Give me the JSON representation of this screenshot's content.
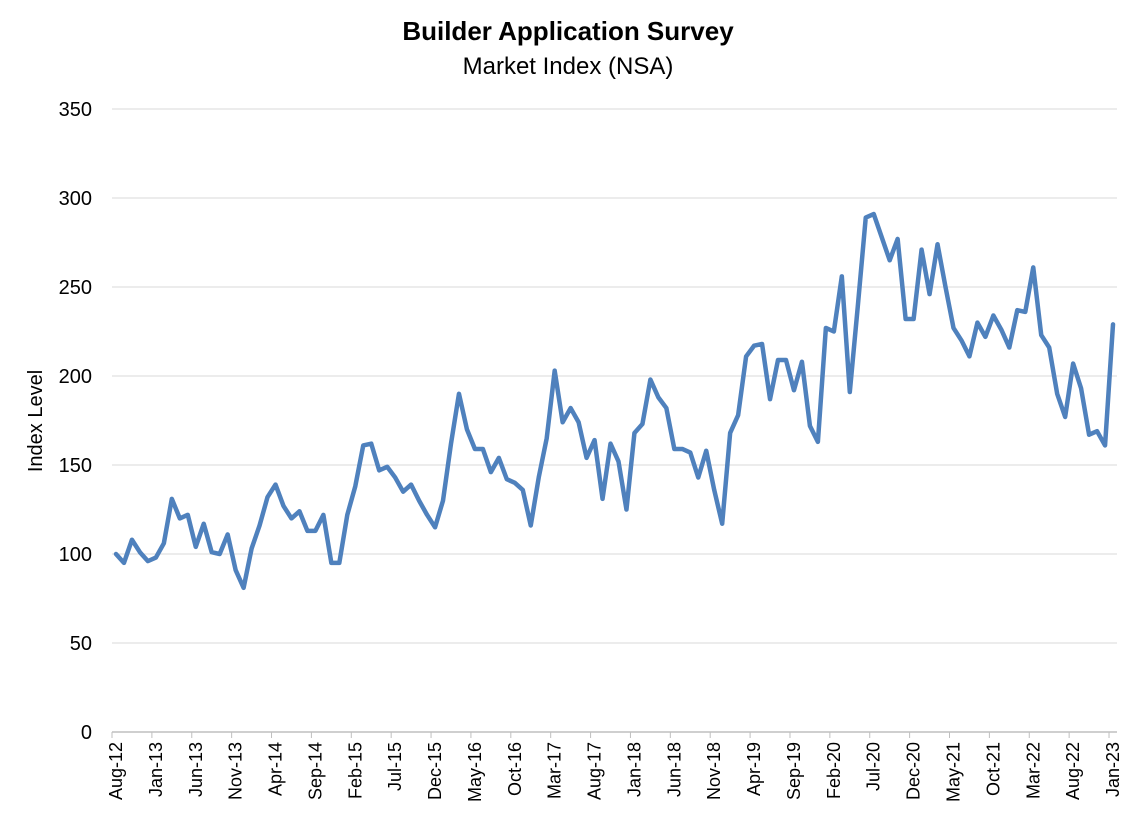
{
  "chart_data": {
    "type": "line",
    "title": "Builder Application Survey",
    "subtitle": "Market Index (NSA)",
    "xlabel": "",
    "ylabel": "Index Level",
    "ylim": [
      0,
      350
    ],
    "yticks": [
      0,
      50,
      100,
      150,
      200,
      250,
      300,
      350
    ],
    "grid": true,
    "legend": "none",
    "line_color": "#4f81bd",
    "x_tick_labels": [
      "Aug-12",
      "Jan-13",
      "Jun-13",
      "Nov-13",
      "Apr-14",
      "Sep-14",
      "Feb-15",
      "Jul-15",
      "Dec-15",
      "May-16",
      "Oct-16",
      "Mar-17",
      "Aug-17",
      "Jan-18",
      "Jun-18",
      "Nov-18",
      "Apr-19",
      "Sep-19",
      "Feb-20",
      "Jul-20",
      "Dec-20",
      "May-21",
      "Oct-21",
      "Mar-22",
      "Aug-22",
      "Jan-23"
    ],
    "series": [
      {
        "start": "Aug-12",
        "end": "Jan-23",
        "frequency": "monthly",
        "values": [
          100,
          95,
          108,
          101,
          96,
          98,
          106,
          131,
          120,
          122,
          104,
          117,
          101,
          100,
          111,
          91,
          81,
          103,
          116,
          132,
          139,
          127,
          120,
          124,
          113,
          113,
          122,
          95,
          95,
          122,
          138,
          161,
          162,
          147,
          149,
          143,
          135,
          139,
          130,
          122,
          115,
          130,
          162,
          190,
          170,
          159,
          159,
          146,
          154,
          142,
          140,
          136,
          116,
          143,
          165,
          203,
          174,
          182,
          174,
          154,
          164,
          131,
          162,
          152,
          125,
          168,
          173,
          198,
          188,
          182,
          159,
          159,
          157,
          143,
          158,
          136,
          117,
          168,
          178,
          211,
          217,
          218,
          187,
          209,
          209,
          192,
          208,
          172,
          163,
          227,
          225,
          256,
          191,
          239,
          289,
          291,
          278,
          265,
          277,
          232,
          232,
          271,
          246,
          274,
          250,
          227,
          220,
          211,
          230,
          222,
          234,
          226,
          216,
          237,
          236,
          261,
          223,
          216,
          190,
          177,
          207,
          193,
          167,
          169,
          161,
          229
        ]
      }
    ]
  }
}
